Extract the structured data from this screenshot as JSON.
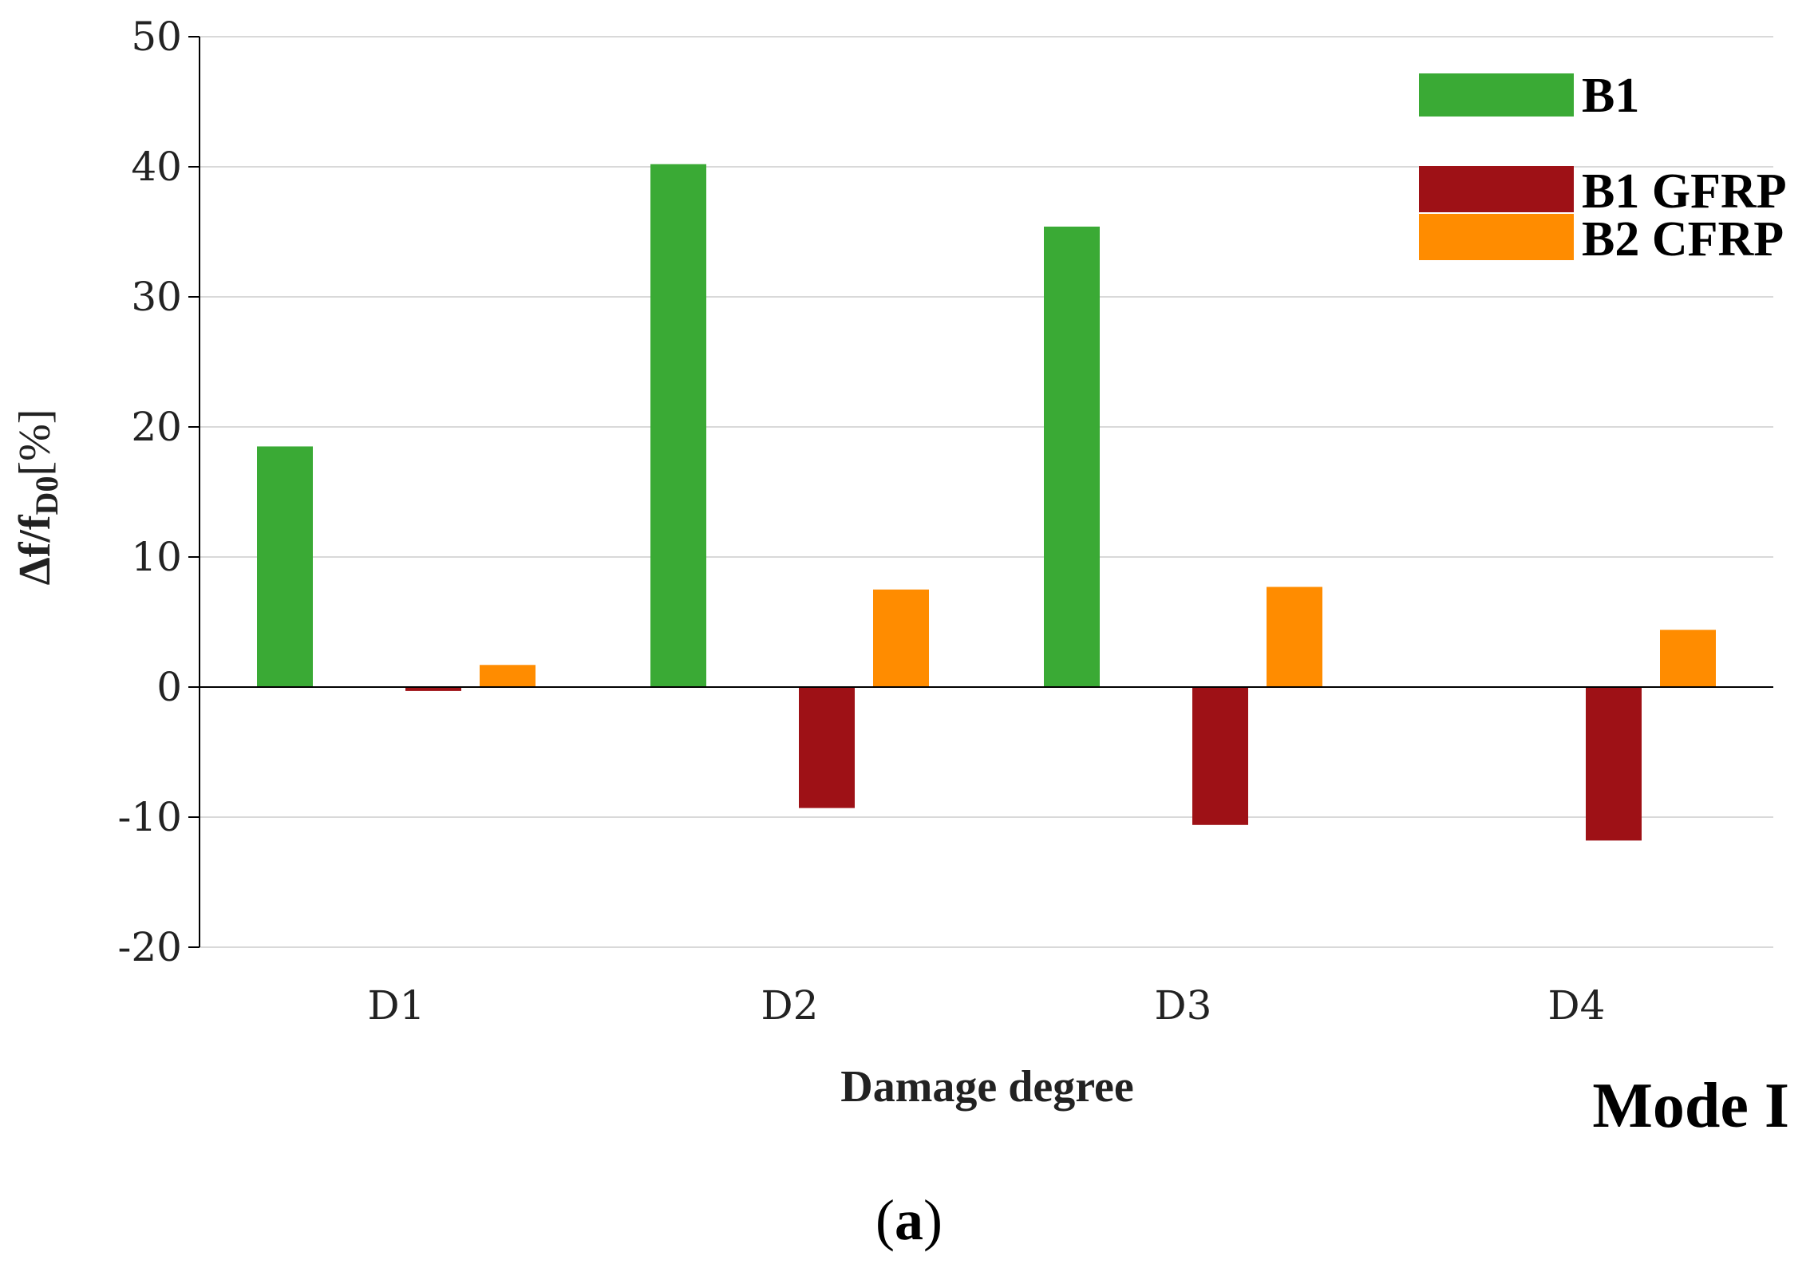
{
  "chart_data": {
    "type": "bar",
    "categories": [
      "D1",
      "D2",
      "D3",
      "D4"
    ],
    "series": [
      {
        "name": "B1",
        "color": "#3aaa35",
        "values": [
          18.5,
          40.2,
          35.4,
          null
        ]
      },
      {
        "name": "",
        "color": "#cccccc",
        "values": [
          0,
          0,
          0,
          null
        ]
      },
      {
        "name": "B1 GFRP",
        "color": "#9e1116",
        "values": [
          -0.3,
          -9.3,
          -10.6,
          -11.8
        ]
      },
      {
        "name": "B2 CFRP",
        "color": "#ff8c00",
        "values": [
          1.7,
          7.5,
          7.7,
          4.4
        ]
      }
    ],
    "legend_series": [
      "B1",
      "B1 GFRP",
      "B2 CFRP"
    ],
    "ylim": [
      -20,
      50
    ],
    "yticks": [
      -20,
      -10,
      0,
      10,
      20,
      30,
      40,
      50
    ],
    "ytick_labels": [
      "-20",
      "-10",
      "0",
      "10",
      "20",
      "30",
      "40",
      "50"
    ],
    "xlabel": "Damage degree",
    "ylabel": "Δf/fD0 [%]",
    "ylabel_main": "Δf/f",
    "ylabel_sub": "D0",
    "ylabel_unit": "[%]",
    "grid": true,
    "legend_position": "top-right",
    "annotation": "Mode I"
  },
  "caption": {
    "open": "(",
    "letter": "a",
    "close": ")"
  }
}
